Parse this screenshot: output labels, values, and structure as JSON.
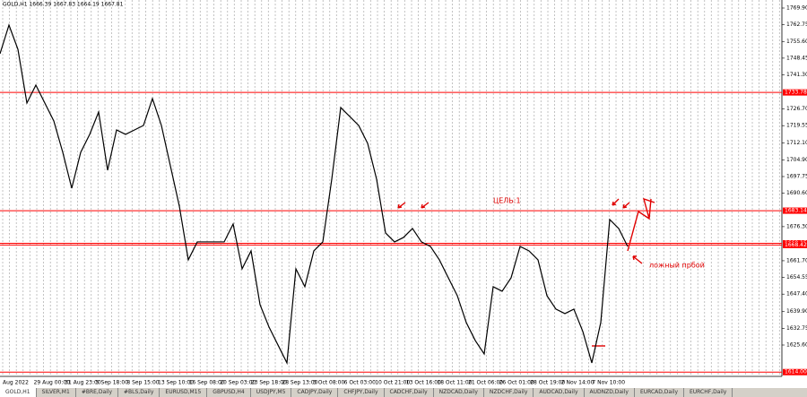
{
  "header": "GOLD,H1  1666.39 1667.83 1664.19 1667.81",
  "chart_data": {
    "type": "line",
    "color": "#000000",
    "values": [
      1750.33,
      1762.61,
      1752.25,
      1729.22,
      1736.9,
      1729.22,
      1721.55,
      1708.12,
      1692.77,
      1708.12,
      1715.8,
      1725.39,
      1700.45,
      1717.71,
      1715.8,
      1717.71,
      1719.63,
      1731.14,
      1719.63,
      1702.37,
      1685.1,
      1662.08,
      1669.75,
      1669.75,
      1669.75,
      1669.75,
      1677.43,
      1658.24,
      1665.91,
      1642.89,
      1633.3,
      1625.62,
      1617.95,
      1658.24,
      1650.57,
      1665.91,
      1669.75,
      1696.61,
      1727.31,
      1723.47,
      1719.63,
      1711.96,
      1696.61,
      1673.59,
      1669.75,
      1671.67,
      1675.51,
      1669.75,
      1667.83,
      1662.08,
      1654.4,
      1646.73,
      1635.22,
      1627.54,
      1621.79,
      1650.57,
      1648.65,
      1654.4,
      1667.83,
      1665.91,
      1662.08,
      1646.73,
      1640.98,
      1639.06,
      1640.98,
      1631.38,
      1617.95,
      1635.22,
      1679.34,
      1675.51,
      1667.83
    ],
    "ylim": [
      1612.17,
      1773.35
    ],
    "yticks": [
      {
        "value": 1769.9,
        "label": "1769.90"
      },
      1762.75,
      {
        "value": 1755.6,
        "label": "1755.60"
      },
      1748.45,
      {
        "value": 1741.3,
        "label": "1741.30"
      },
      {
        "value": 1726.7,
        "label": "1726.70"
      },
      1719.55,
      {
        "value": 1712.1,
        "label": "1712.10"
      },
      {
        "value": 1704.9,
        "label": "1704.90"
      },
      1697.75,
      {
        "value": 1690.6,
        "label": "1690.60"
      },
      {
        "value": 1676.3,
        "label": "1676.30"
      },
      {
        "value": 1661.7,
        "label": "1661.70"
      },
      1654.55,
      {
        "value": 1647.4,
        "label": "1647.40"
      },
      {
        "value": 1639.9,
        "label": "1639.90"
      },
      1632.75,
      {
        "value": 1625.6,
        "label": "1625.60"
      }
    ],
    "levels": [
      1733.78,
      1683.14,
      1669.15,
      1668.42,
      {
        "value": 1614,
        "label": "1614.00"
      }
    ],
    "level_color": "#ff0000",
    "x_labels": [
      "Aug 2022",
      "29 Aug 00:00",
      "31 Aug 23:00",
      "5 Sep 18:00",
      "8 Sep 15:00",
      "13 Sep 10:00",
      "16 Sep 08:00",
      "20 Sep 03:00",
      "23 Sep 18:00",
      "28 Sep 13:00",
      "3 Oct 08:00",
      "6 Oct 03:00",
      "10 Oct 21:00",
      "13 Oct 16:00",
      "18 Oct 11:00",
      "21 Oct 06:00",
      "26 Oct 01:00",
      "28 Oct 19:00",
      "2 Nov 14:00",
      "7 Nov 10:00"
    ],
    "annotations": [
      "ЦЕЛЬ:1",
      "ложный прбой"
    ]
  },
  "tabs": [
    "GOLD,H1",
    "SILVER,M1",
    "#BRE,Daily",
    "#BLS,Daily",
    "EURUSD,M15",
    "GBPUSD,H4",
    "USDJPY,M5",
    "CADJPY,Daily",
    "CHFJPY,Daily",
    "CADCHF,Daily",
    "NZDCAD,Daily",
    "NZDCHF,Daily",
    "AUDCAD,Daily",
    "AUDNZD,Daily",
    "EURCAD,Daily",
    "EURCHF,Daily"
  ]
}
